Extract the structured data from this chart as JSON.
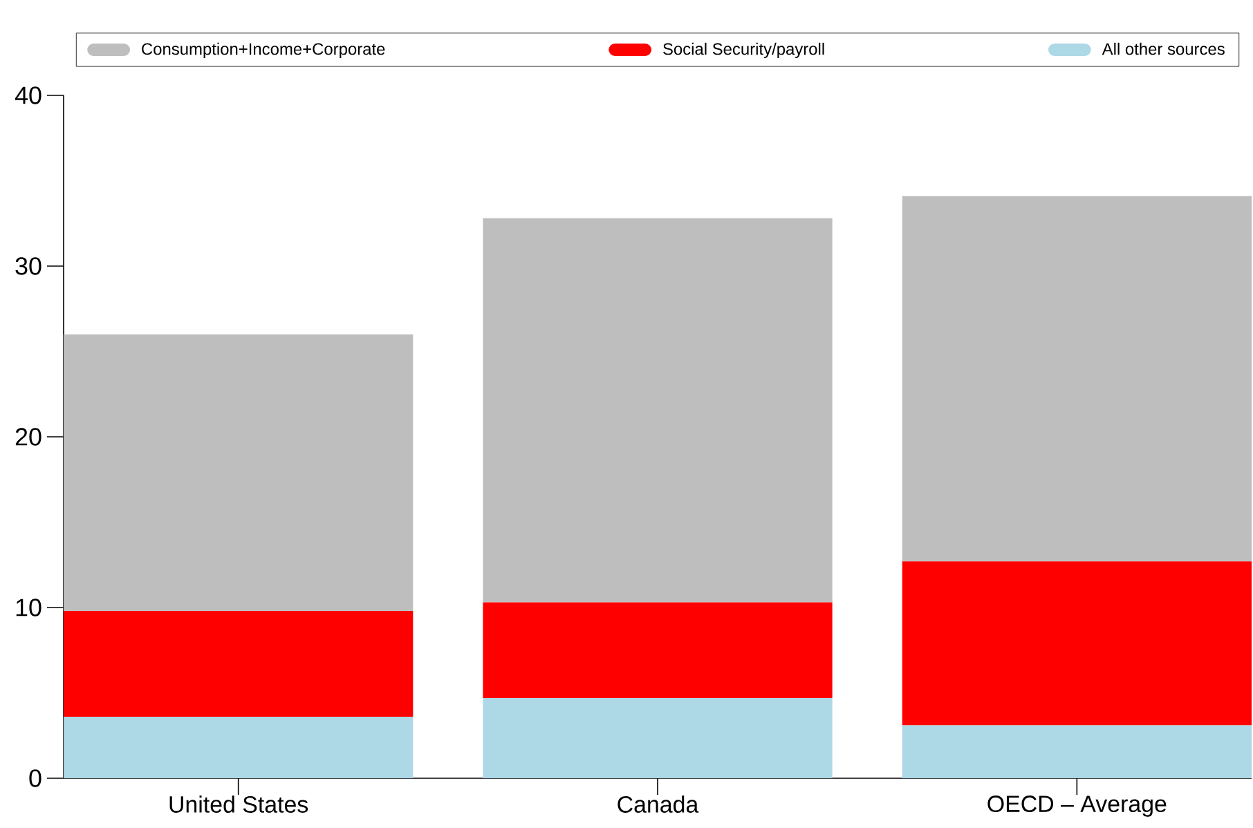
{
  "chart_data": {
    "type": "bar",
    "stacked": true,
    "categories": [
      "United States",
      "Canada",
      "OECD – Average"
    ],
    "series": [
      {
        "name": "All other sources",
        "color": "#add8e6",
        "values": [
          3.6,
          4.7,
          3.1
        ]
      },
      {
        "name": "Social Security/payroll",
        "color": "#ff0000",
        "values": [
          6.2,
          5.6,
          9.6
        ]
      },
      {
        "name": "Consumption+Income+Corporate",
        "color": "#bebebe",
        "values": [
          16.2,
          22.5,
          21.4
        ]
      }
    ],
    "ylim": [
      0,
      40
    ],
    "yticks": [
      0,
      10,
      20,
      30,
      40
    ],
    "grid": false,
    "legend": "top"
  }
}
